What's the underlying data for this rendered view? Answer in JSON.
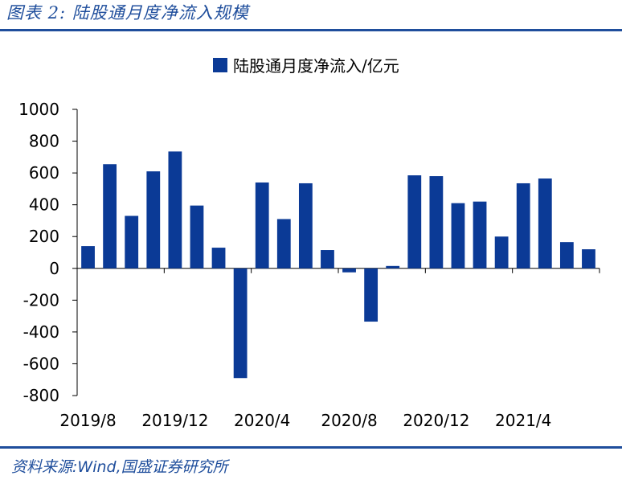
{
  "header": {
    "figure_title": "图表 2:  陆股通月度净流入规模"
  },
  "footer": {
    "source": "资料来源:Wind,国盛证券研究所"
  },
  "colors": {
    "accent": "#1f4e9c",
    "bar": "#0b3a96"
  },
  "chart_data": {
    "type": "bar",
    "legend": "陆股通月度净流入/亿元",
    "legend_position": "top-center",
    "grid": false,
    "ylim": [
      -800,
      1000
    ],
    "yticks": [
      1000,
      800,
      600,
      400,
      200,
      0,
      -200,
      -400,
      -600,
      -800
    ],
    "xticks": [
      "2019/8",
      "2019/12",
      "2020/4",
      "2020/8",
      "2020/12",
      "2021/4"
    ],
    "categories": [
      "2019/8",
      "2019/9",
      "2019/10",
      "2019/11",
      "2019/12",
      "2020/1",
      "2020/2",
      "2020/3",
      "2020/4",
      "2020/5",
      "2020/6",
      "2020/7",
      "2020/8",
      "2020/9",
      "2020/10",
      "2020/11",
      "2020/12",
      "2021/1",
      "2021/2",
      "2021/3",
      "2021/4",
      "2021/5",
      "2021/6",
      "2021/7"
    ],
    "series": [
      {
        "name": "陆股通月度净流入/亿元",
        "values": [
          140,
          655,
          330,
          610,
          735,
          395,
          130,
          -690,
          540,
          310,
          535,
          115,
          -25,
          -335,
          15,
          585,
          580,
          410,
          420,
          200,
          535,
          565,
          165,
          120
        ]
      }
    ]
  }
}
